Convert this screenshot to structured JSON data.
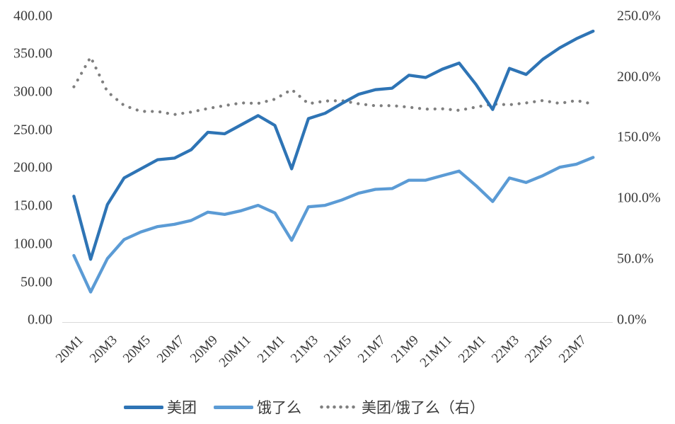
{
  "chart_data": {
    "type": "line",
    "title": "",
    "grid": false,
    "legend_position": "bottom",
    "categories": [
      "20M1",
      "20M2",
      "20M3",
      "20M4",
      "20M5",
      "20M6",
      "20M7",
      "20M8",
      "20M9",
      "20M10",
      "20M11",
      "20M12",
      "21M1",
      "21M2",
      "21M3",
      "21M4",
      "21M5",
      "21M6",
      "21M7",
      "21M8",
      "21M9",
      "21M10",
      "21M11",
      "21M12",
      "22M1",
      "22M2",
      "22M3",
      "22M4",
      "22M5",
      "22M6",
      "22M7",
      "22M8"
    ],
    "x_tick_step": 2,
    "x_tick_labels_shown": [
      "20M1",
      "20M3",
      "20M5",
      "20M7",
      "20M9",
      "20M11",
      "21M1",
      "21M3",
      "21M5",
      "21M7",
      "21M9",
      "21M11",
      "22M1",
      "22M3",
      "22M5",
      "22M7"
    ],
    "left_axis": {
      "min": 0,
      "max": 400,
      "ticks": [
        "0.00",
        "50.00",
        "100.00",
        "150.00",
        "200.00",
        "250.00",
        "300.00",
        "350.00",
        "400.00"
      ]
    },
    "right_axis": {
      "min": 0,
      "max": 250,
      "ticks": [
        "0.0%",
        "50.0%",
        "100.0%",
        "150.0%",
        "200.0%",
        "250.0%"
      ]
    },
    "series": [
      {
        "key": "meituan",
        "name": "美团",
        "axis": "left",
        "style": "solid",
        "color": "#2E74B5",
        "values": [
          163,
          80,
          152,
          187,
          199,
          211,
          213,
          224,
          247,
          245,
          257,
          269,
          256,
          199,
          265,
          272,
          285,
          297,
          303,
          305,
          322,
          319,
          330,
          338,
          310,
          277,
          331,
          323,
          343,
          358,
          370,
          380
        ]
      },
      {
        "key": "eleme",
        "name": "饿了么",
        "axis": "left",
        "style": "solid",
        "color": "#5B9BD5",
        "values": [
          85,
          37,
          81,
          106,
          116,
          123,
          126,
          131,
          142,
          139,
          144,
          151,
          141,
          105,
          149,
          151,
          158,
          167,
          172,
          173,
          184,
          184,
          190,
          196,
          177,
          156,
          187,
          181,
          190,
          201,
          205,
          214
        ]
      },
      {
        "key": "ratio",
        "name": "美团/饿了么（右）",
        "axis": "right",
        "style": "dotted",
        "color": "#7F7F7F",
        "values": [
          191.8,
          216.2,
          187.7,
          176.4,
          171.6,
          171.5,
          169.0,
          171.0,
          173.9,
          176.3,
          178.5,
          178.1,
          181.6,
          189.5,
          177.9,
          180.1,
          180.4,
          177.8,
          176.2,
          176.3,
          175.0,
          173.4,
          173.7,
          172.4,
          175.1,
          177.6,
          177.0,
          178.5,
          180.5,
          178.1,
          180.5,
          177.6
        ]
      }
    ]
  }
}
